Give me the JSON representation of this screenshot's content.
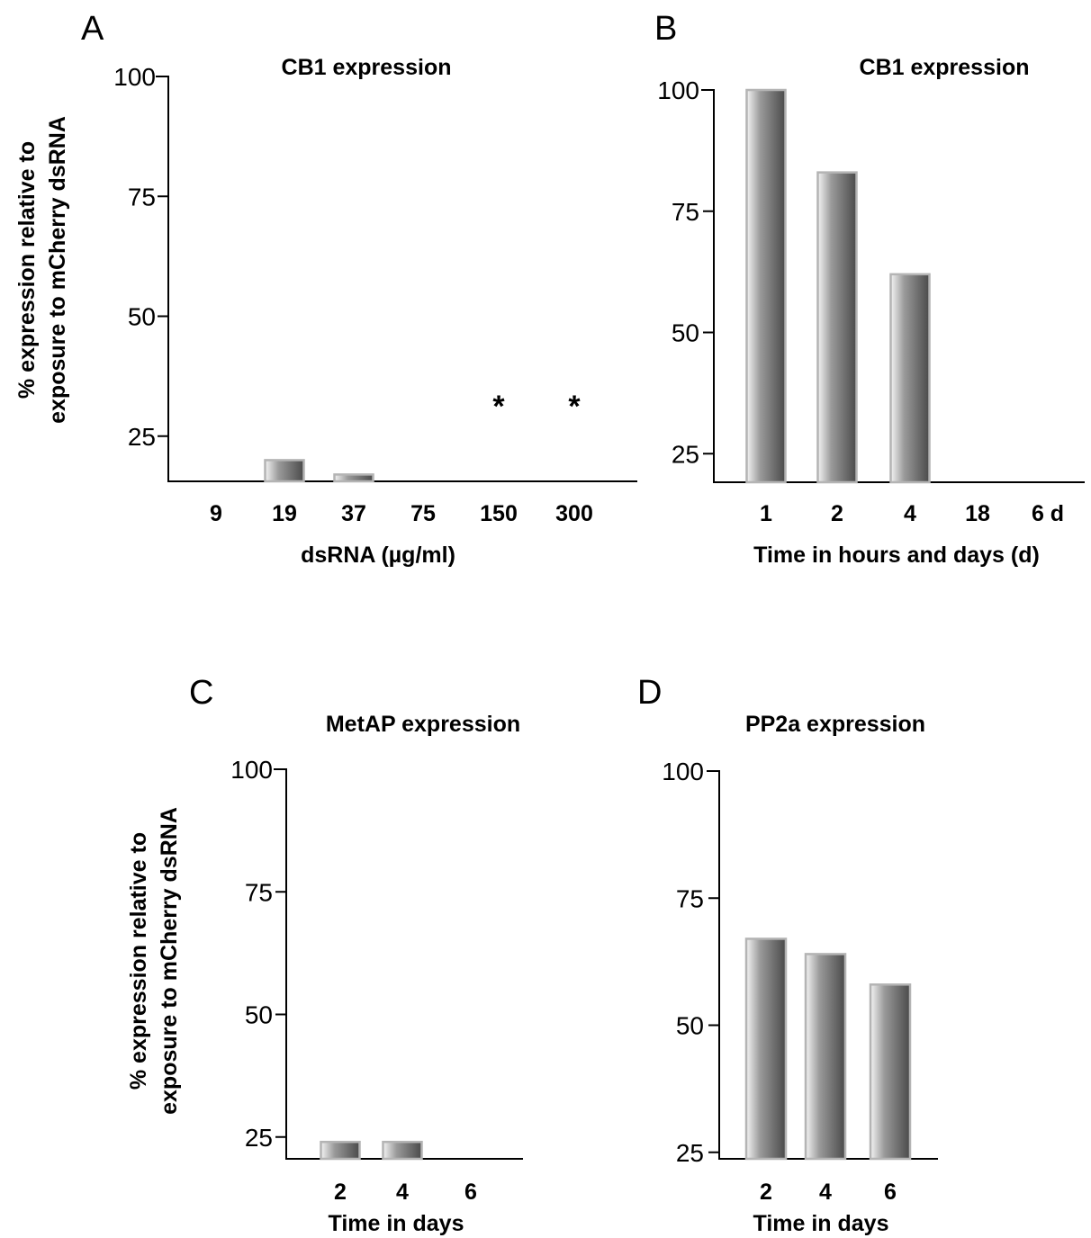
{
  "chart_data": [
    {
      "panel": "A",
      "type": "bar",
      "title": "CB1 expression",
      "xlabel": "dsRNA (µg/ml)",
      "ylabel": [
        "% expression relative to",
        "exposure to mCherry dsRNA"
      ],
      "categories": [
        "9",
        "19",
        "37",
        "75",
        "150",
        "300"
      ],
      "values": [
        15,
        20,
        17,
        5,
        5,
        5
      ],
      "annotations": [
        "",
        "",
        "",
        "",
        "*",
        "*"
      ],
      "ylim": [
        0,
        100
      ],
      "yticks": [
        25,
        50,
        75,
        100
      ],
      "legend": "none",
      "grid": false
    },
    {
      "panel": "B",
      "type": "bar",
      "title": "CB1 expression",
      "xlabel": "Time in hours and days (d)",
      "ylabel": [],
      "categories": [
        "1",
        "2",
        "4",
        "18",
        "6 d"
      ],
      "values": [
        100,
        83,
        62,
        19,
        12
      ],
      "annotations": [],
      "ylim": [
        0,
        100
      ],
      "yticks": [
        25,
        50,
        75,
        100
      ],
      "legend": "none",
      "grid": false
    },
    {
      "panel": "C",
      "type": "bar",
      "title": "MetAP expression",
      "xlabel": "Time in days",
      "ylabel": [
        "% expression relative to",
        "exposure to mCherry dsRNA"
      ],
      "categories": [
        "2",
        "4",
        "6"
      ],
      "values": [
        24,
        24,
        19
      ],
      "annotations": [],
      "ylim": [
        0,
        100
      ],
      "yticks": [
        25,
        50,
        75,
        100
      ],
      "legend": "none",
      "grid": false
    },
    {
      "panel": "D",
      "type": "bar",
      "title": "PP2a expression",
      "xlabel": "Time in days",
      "ylabel": [],
      "categories": [
        "2",
        "4",
        "6"
      ],
      "values": [
        67,
        64,
        58
      ],
      "annotations": [],
      "ylim": [
        0,
        100
      ],
      "yticks": [
        25,
        50,
        75,
        100
      ],
      "legend": "none",
      "grid": false
    }
  ]
}
